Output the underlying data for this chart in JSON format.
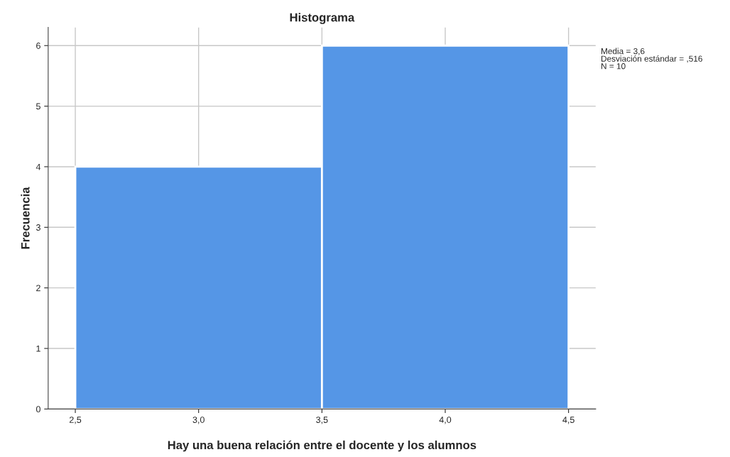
{
  "chart_data": {
    "type": "histogram",
    "title": "Histograma",
    "xlabel": "Hay una buena relación entre el docente y los alumnos",
    "ylabel": "Frecuencia",
    "bins": [
      2.5,
      3.5,
      4.5
    ],
    "values": [
      4,
      6
    ],
    "color": "#5596e6",
    "xlim": [
      2.39,
      4.61
    ],
    "ylim": [
      0,
      6.3
    ],
    "xticks": [
      {
        "value": 2.5,
        "label": "2,5"
      },
      {
        "value": 3.0,
        "label": "3,0"
      },
      {
        "value": 3.5,
        "label": "3,5"
      },
      {
        "value": 4.0,
        "label": "4,0"
      },
      {
        "value": 4.5,
        "label": "4,5"
      }
    ],
    "yticks": [
      0,
      1,
      2,
      3,
      4,
      5,
      6
    ],
    "grid": true,
    "annotations": [
      "Media = 3,6\nDesviación estándar = ,516\nN = 10"
    ]
  }
}
